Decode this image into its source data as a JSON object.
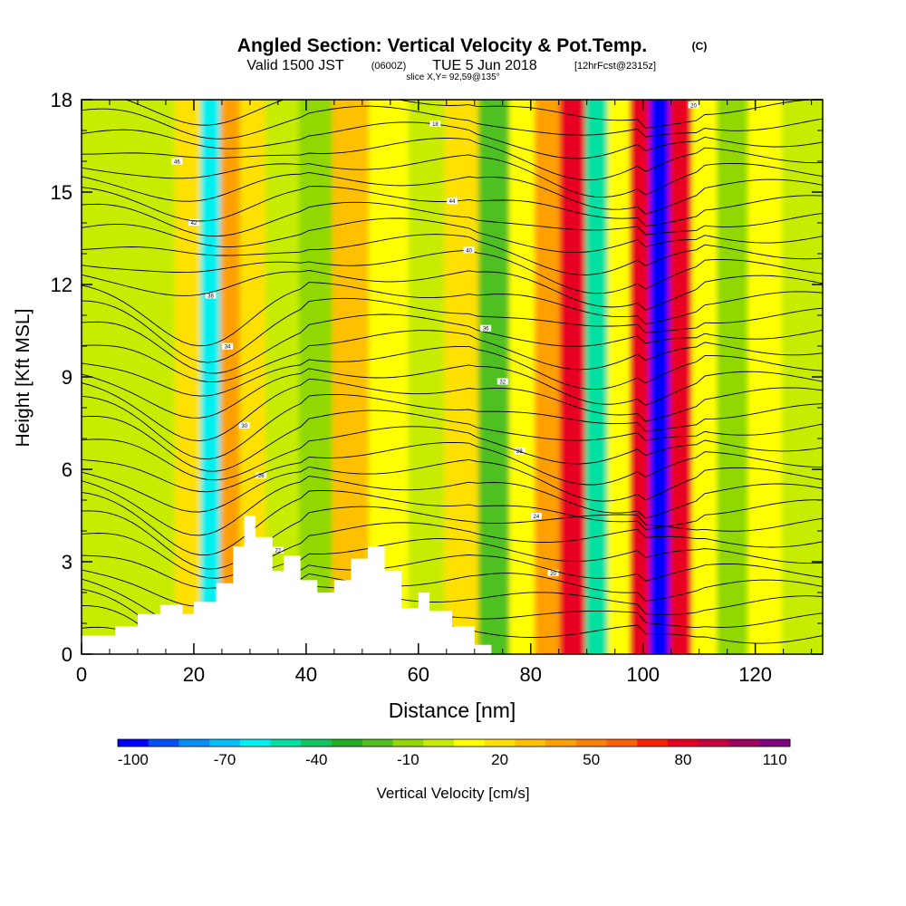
{
  "header": {
    "title_main": "Angled Section: Vertical Velocity & Pot.Temp.",
    "title_suffix": "(C)",
    "valid_prefix": "Valid 1500 JST",
    "valid_utc": "(0600Z)",
    "valid_date": "TUE 5 Jun 2018",
    "valid_fcst": "[12hrFcst@2315z]",
    "slice": "slice X,Y= 92,59@135°"
  },
  "chart_data": {
    "type": "heatmap",
    "xlabel": "Distance [nm]",
    "ylabel": "Height [Kft MSL]",
    "xlim": [
      0,
      132
    ],
    "ylim": [
      0,
      18
    ],
    "x_ticks": [
      0,
      20,
      40,
      60,
      80,
      100,
      120
    ],
    "y_ticks": [
      0,
      3,
      6,
      9,
      12,
      15,
      18
    ],
    "colorbar": {
      "label": "Vertical Velocity [cm/s]",
      "min": -100,
      "max": 120,
      "step": 10,
      "tick_labels": [
        -100,
        -70,
        -40,
        -10,
        20,
        50,
        80,
        110
      ],
      "colors": [
        "#0000ff",
        "#0050ff",
        "#0090ff",
        "#00c0ff",
        "#00f0f0",
        "#00e0a0",
        "#10c860",
        "#20b020",
        "#50c020",
        "#90d800",
        "#c8ec00",
        "#ffff00",
        "#ffe000",
        "#ffc000",
        "#ffa000",
        "#ff8000",
        "#ff6000",
        "#ff2000",
        "#e80020",
        "#c80040",
        "#a00060",
        "#800080"
      ]
    },
    "velocity_columns": [
      {
        "x": 6,
        "value": 0
      },
      {
        "x": 14,
        "value": -5
      },
      {
        "x": 20,
        "value": 15
      },
      {
        "x": 23,
        "value": -60
      },
      {
        "x": 27,
        "value": 40
      },
      {
        "x": 30,
        "value": 20
      },
      {
        "x": 36,
        "value": 0
      },
      {
        "x": 42,
        "value": -10
      },
      {
        "x": 48,
        "value": 30
      },
      {
        "x": 55,
        "value": 5
      },
      {
        "x": 62,
        "value": 0
      },
      {
        "x": 68,
        "value": 20
      },
      {
        "x": 74,
        "value": -20
      },
      {
        "x": 79,
        "value": 5
      },
      {
        "x": 83,
        "value": 40
      },
      {
        "x": 88,
        "value": 80
      },
      {
        "x": 92,
        "value": -50
      },
      {
        "x": 96,
        "value": 10
      },
      {
        "x": 100,
        "value": 80
      },
      {
        "x": 103,
        "value": -100
      },
      {
        "x": 107,
        "value": 80
      },
      {
        "x": 111,
        "value": 10
      },
      {
        "x": 116,
        "value": -10
      },
      {
        "x": 122,
        "value": 10
      },
      {
        "x": 128,
        "value": 0
      }
    ],
    "terrain": [
      {
        "x": 0,
        "h": 0.6
      },
      {
        "x": 6,
        "h": 0.9
      },
      {
        "x": 10,
        "h": 1.3
      },
      {
        "x": 14,
        "h": 1.6
      },
      {
        "x": 18,
        "h": 1.3
      },
      {
        "x": 20,
        "h": 1.7
      },
      {
        "x": 24,
        "h": 2.3
      },
      {
        "x": 27,
        "h": 3.5
      },
      {
        "x": 29,
        "h": 4.5
      },
      {
        "x": 31,
        "h": 3.8
      },
      {
        "x": 34,
        "h": 2.7
      },
      {
        "x": 36,
        "h": 3.2
      },
      {
        "x": 39,
        "h": 2.4
      },
      {
        "x": 42,
        "h": 2.0
      },
      {
        "x": 45,
        "h": 2.4
      },
      {
        "x": 48,
        "h": 3.1
      },
      {
        "x": 51,
        "h": 3.5
      },
      {
        "x": 54,
        "h": 2.7
      },
      {
        "x": 57,
        "h": 1.5
      },
      {
        "x": 60,
        "h": 2.0
      },
      {
        "x": 62,
        "h": 1.4
      },
      {
        "x": 66,
        "h": 0.9
      },
      {
        "x": 70,
        "h": 0.3
      },
      {
        "x": 73,
        "h": 0
      }
    ],
    "theta_labels": [
      "46",
      "44",
      "42",
      "40",
      "38",
      "36",
      "34",
      "32",
      "30",
      "28",
      "26",
      "24",
      "22",
      "20",
      "18"
    ]
  }
}
